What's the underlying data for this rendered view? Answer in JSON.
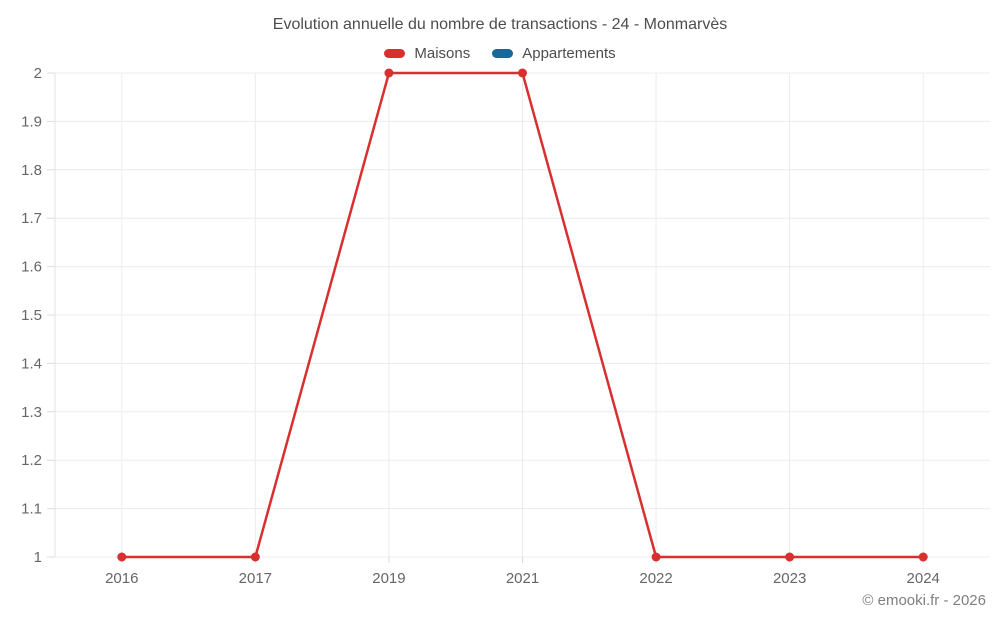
{
  "chart_data": {
    "type": "line",
    "title": "Evolution annuelle du nombre de transactions - 24 - Monmarvès",
    "categories": [
      "2016",
      "2017",
      "2019",
      "2021",
      "2022",
      "2023",
      "2024"
    ],
    "series": [
      {
        "name": "Maisons",
        "color": "#d7302f",
        "values": [
          1,
          1,
          2,
          2,
          1,
          1,
          1
        ]
      },
      {
        "name": "Appartements",
        "color": "#17699c",
        "values": []
      }
    ],
    "xlabel": "",
    "ylabel": "",
    "ylim": [
      1,
      2
    ],
    "yticks": [
      {
        "v": 2,
        "label": "2"
      },
      {
        "v": 1.9,
        "label": "1.9"
      },
      {
        "v": 1.8,
        "label": "1.8"
      },
      {
        "v": 1.7,
        "label": "1.7"
      },
      {
        "v": 1.6,
        "label": "1.6"
      },
      {
        "v": 1.5,
        "label": "1.5"
      },
      {
        "v": 1.4,
        "label": "1.4"
      },
      {
        "v": 1.3,
        "label": "1.3"
      },
      {
        "v": 1.2,
        "label": "1.2"
      },
      {
        "v": 1.1,
        "label": "1.1"
      },
      {
        "v": 1,
        "label": "1"
      }
    ],
    "grid": true,
    "legend_position": "top",
    "colors": {
      "gridline": "#ececec",
      "axis_line": "#e3e3e3",
      "tick": "#dcdcdc",
      "tick_label": "#666666"
    }
  },
  "footer": {
    "copyright": "© emooki.fr - 2026"
  }
}
